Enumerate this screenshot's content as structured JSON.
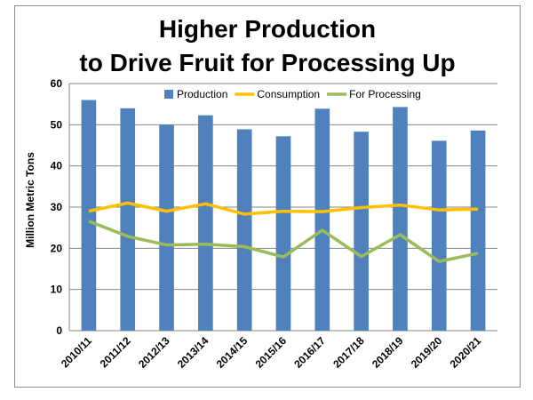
{
  "chart_data": {
    "type": "bar",
    "title_lines": [
      "Higher Production",
      "to Drive Fruit for Processing Up"
    ],
    "ylabel": "Million Metric Tons",
    "xlabel": "",
    "ylim": [
      0,
      60
    ],
    "yticks": [
      0,
      10,
      20,
      30,
      40,
      50,
      60
    ],
    "grid": true,
    "legend_position": "top-right",
    "categories": [
      "2010/11",
      "2011/12",
      "2012/13",
      "2013/14",
      "2014/15",
      "2015/16",
      "2016/17",
      "2017/18",
      "2018/19",
      "2019/20",
      "2020/21"
    ],
    "series": [
      {
        "name": "Production",
        "kind": "bar",
        "color": "#4f81bd",
        "values": [
          56,
          54,
          50,
          52.3,
          48.9,
          47.2,
          53.9,
          48.3,
          54.3,
          46.1,
          48.6
        ]
      },
      {
        "name": "Consumption",
        "kind": "line",
        "color": "#ffc000",
        "values": [
          29,
          31,
          29,
          30.8,
          28.3,
          29,
          28.9,
          29.9,
          30.5,
          29.3,
          29.5
        ]
      },
      {
        "name": "For Processing",
        "kind": "line",
        "color": "#9bbb59",
        "values": [
          26.6,
          22.9,
          20.8,
          21,
          20.4,
          17.9,
          24.4,
          18,
          23.3,
          16.8,
          18.8
        ]
      }
    ]
  }
}
